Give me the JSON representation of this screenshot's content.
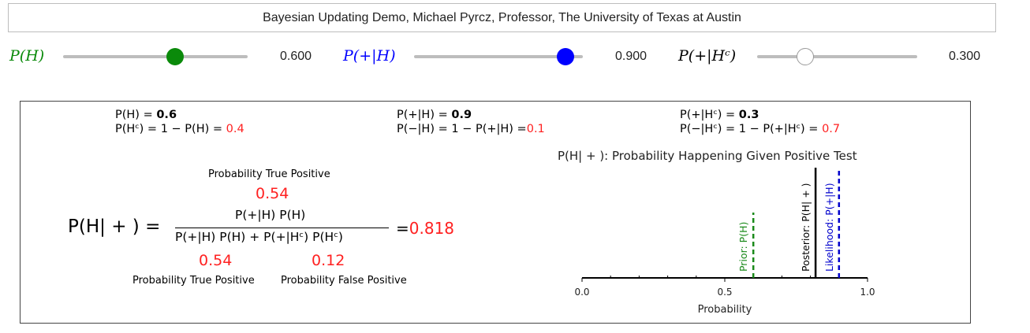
{
  "header": {
    "title": "Bayesian Updating Demo, Michael Pyrcz, Professor, The University of Texas at Austin"
  },
  "sliders": [
    {
      "label": "P(H)",
      "value_text": "0.600",
      "value": 0.6,
      "color": "#0a8a0a"
    },
    {
      "label": "P(+|H)",
      "value_text": "0.900",
      "value": 0.9,
      "color": "#0000ff"
    },
    {
      "label": "P(+|Hᶜ)",
      "value_text": "0.300",
      "value": 0.3,
      "color": "#ffffff"
    }
  ],
  "panel": {
    "col1": {
      "line1_pre": "P(H) = ",
      "line1_val": "0.6",
      "line2_pre": "P(Hᶜ) = 1 − P(H) = ",
      "line2_val": "0.4"
    },
    "col2": {
      "line1_pre": "P(+|H) = ",
      "line1_val": "0.9",
      "line2_pre": "P(−|H) = 1 − P(+|H) =",
      "line2_val": "0.1"
    },
    "col3": {
      "line1_pre": "P(+|Hᶜ) = ",
      "line1_val": "0.3",
      "line2_pre": "P(−|Hᶜ) = 1 − P(+|Hᶜ) = ",
      "line2_val": "0.7"
    },
    "formula": {
      "top_caption": "Probability True Positive",
      "top_value": "0.54",
      "lhs": "P(H| + ) =",
      "numerator": "P(+|H) P(H)",
      "denominator": "P(+|H) P(H) + P(+|Hᶜ) P(Hᶜ)",
      "equals": "=",
      "result": "0.818",
      "bottom_left_value": "0.54",
      "bottom_right_value": "0.12",
      "bottom_left_caption": "Probability True Positive",
      "bottom_right_caption": "Probability False Positive"
    }
  },
  "chart_data": {
    "type": "line",
    "title": "P(H| + ): Probability Happening Given Positive Test",
    "xlabel": "Probability",
    "xlim": [
      0.0,
      1.0
    ],
    "tick_labels": [
      "0.0",
      "0.5",
      "1.0"
    ],
    "x_ticks": [
      0.0,
      0.5,
      1.0
    ],
    "minor_ticks": [
      0.1,
      0.2,
      0.3,
      0.4,
      0.6,
      0.7,
      0.8,
      0.9
    ],
    "series": [
      {
        "name": "Prior: P(H)",
        "x": 0.6,
        "color": "#1a8a1a",
        "style": "dashed"
      },
      {
        "name": "Posterior: P(H| + )",
        "x": 0.818,
        "color": "#000000",
        "style": "solid"
      },
      {
        "name": "Likelihood: P(+|H)",
        "x": 0.9,
        "color": "#0000cc",
        "style": "dashed"
      }
    ],
    "grid": false
  }
}
